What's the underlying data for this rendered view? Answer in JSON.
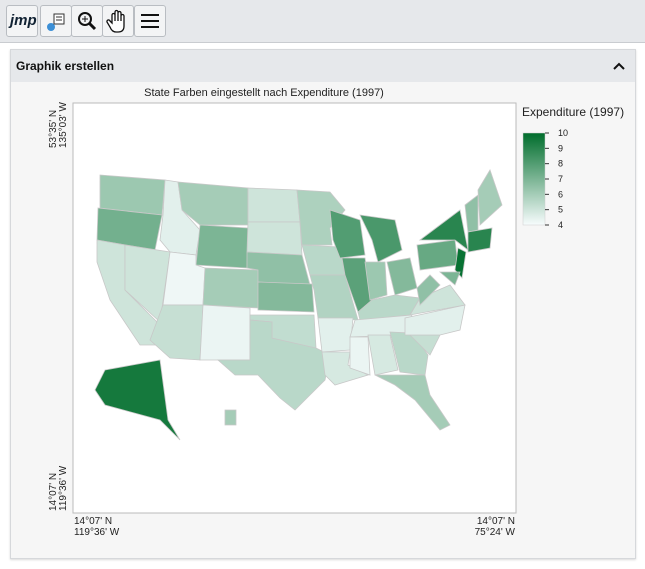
{
  "toolbar": {
    "logo": "jmp"
  },
  "panel": {
    "title": "Graphik erstellen"
  },
  "chart": {
    "title": "State Farben eingestellt nach Expenditure (1997)",
    "y_top_labels": [
      "53°35' N",
      "135°03' W"
    ],
    "y_bottom_labels": [
      "14°07' N",
      "119°36' W"
    ],
    "x_left_labels": [
      "14°07' N",
      "119°36' W"
    ],
    "x_right_labels": [
      "14°07' N",
      "75°24' W"
    ]
  },
  "legend": {
    "title": "Expenditure (1997)",
    "range": [
      4,
      10
    ],
    "ticks": [
      10,
      9,
      8,
      7,
      6,
      5,
      4
    ],
    "color_low": "#f7fcfd",
    "color_high": "#006d2c"
  },
  "map": {
    "regions": [
      6.2,
      7.2,
      5,
      5,
      4.5,
      6,
      7,
      4.2,
      5.2,
      6,
      4.3,
      5,
      5,
      6.5,
      6.8,
      5.3,
      5.5,
      5.8,
      5.5,
      5.7,
      4.5,
      4.8,
      8,
      7.8,
      8.2,
      6.2,
      6.8,
      5.5,
      4.5,
      4.3,
      4.8,
      5.5,
      6,
      5.2,
      4.5,
      5,
      6.5,
      7.5,
      9,
      9.8,
      7,
      6.5,
      6,
      9,
      9.5,
      6
    ]
  }
}
